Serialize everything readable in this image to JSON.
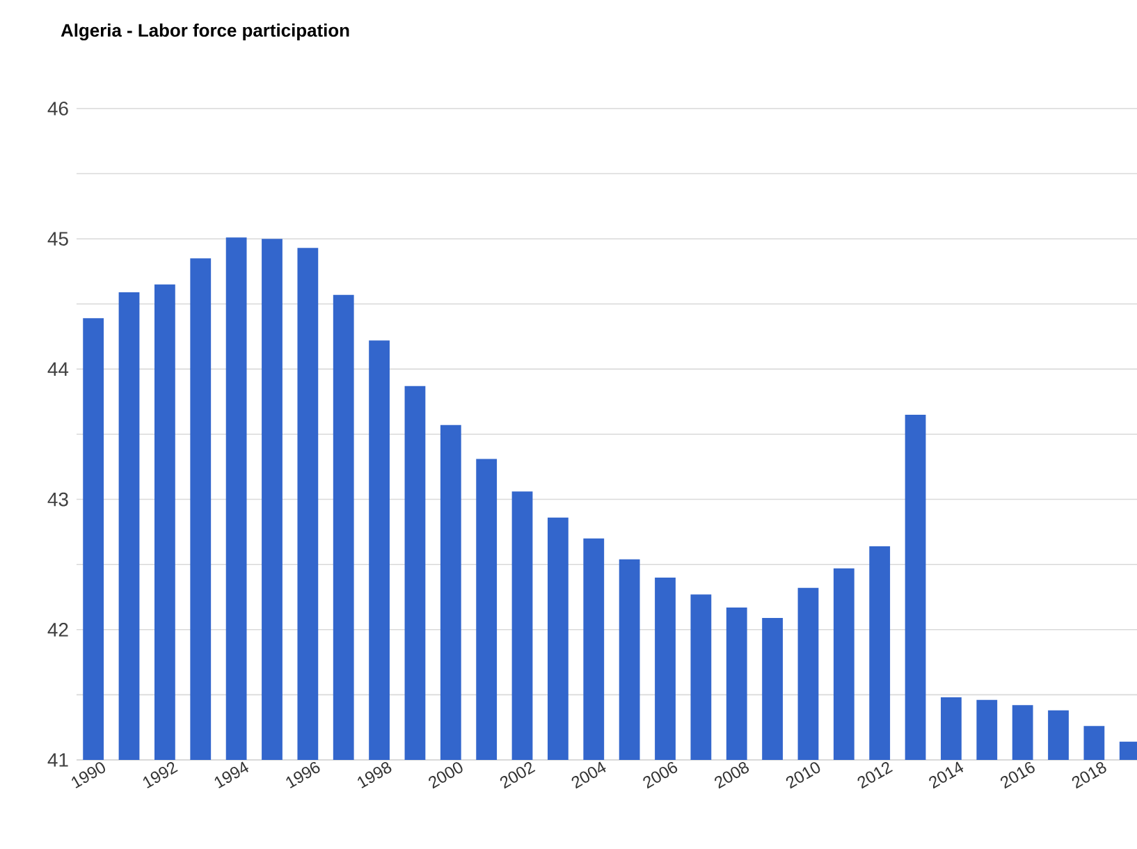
{
  "chart_data": {
    "type": "bar",
    "title": "Algeria - Labor force participation",
    "categories": [
      "1990",
      null,
      "1992",
      null,
      "1994",
      null,
      "1996",
      null,
      "1998",
      null,
      "2000",
      null,
      "2002",
      null,
      "2004",
      null,
      "2006",
      null,
      "2008",
      null,
      "2010",
      null,
      "2012",
      null,
      "2014",
      null,
      "2016",
      null,
      "2018",
      null
    ],
    "values": [
      44.39,
      44.59,
      44.65,
      44.85,
      45.01,
      45.0,
      44.93,
      44.57,
      44.22,
      43.87,
      43.57,
      43.31,
      43.06,
      42.86,
      42.7,
      42.54,
      42.4,
      42.27,
      42.17,
      42.09,
      42.32,
      42.47,
      42.64,
      43.65,
      41.48,
      41.46,
      41.42,
      41.38,
      41.26,
      41.14
    ],
    "color": "#3366cc",
    "ylim": [
      41,
      46
    ],
    "yticks": [
      41,
      {
        "value": 41.5,
        "label": null
      },
      42,
      {
        "value": 42.5,
        "label": null
      },
      43,
      {
        "value": 43.5,
        "label": null
      },
      44,
      {
        "value": 44.5,
        "label": null
      },
      45,
      {
        "value": 45.5,
        "label": null
      },
      46
    ],
    "grid": "y"
  }
}
